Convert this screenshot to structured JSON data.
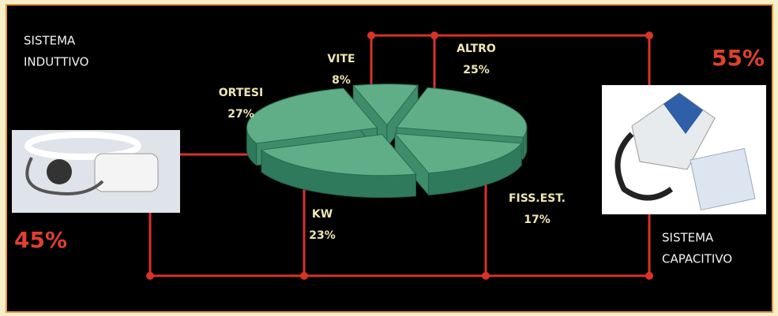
{
  "chart_data": {
    "type": "pie",
    "categories": [
      "VITE",
      "ALTRO",
      "FISS.EST.",
      "KW",
      "ORTESI"
    ],
    "values": [
      8,
      25,
      17,
      23,
      27
    ],
    "value_labels": [
      "8%",
      "25%",
      "17%",
      "23%",
      "27%"
    ],
    "color": "#5fae88",
    "groups": [
      {
        "lines": [
          "SISTEMA",
          "INDUTTIVO"
        ],
        "label": "45%"
      },
      {
        "lines": [
          "SISTEMA",
          "CAPACITIVO"
        ],
        "label": "55%"
      }
    ]
  }
}
